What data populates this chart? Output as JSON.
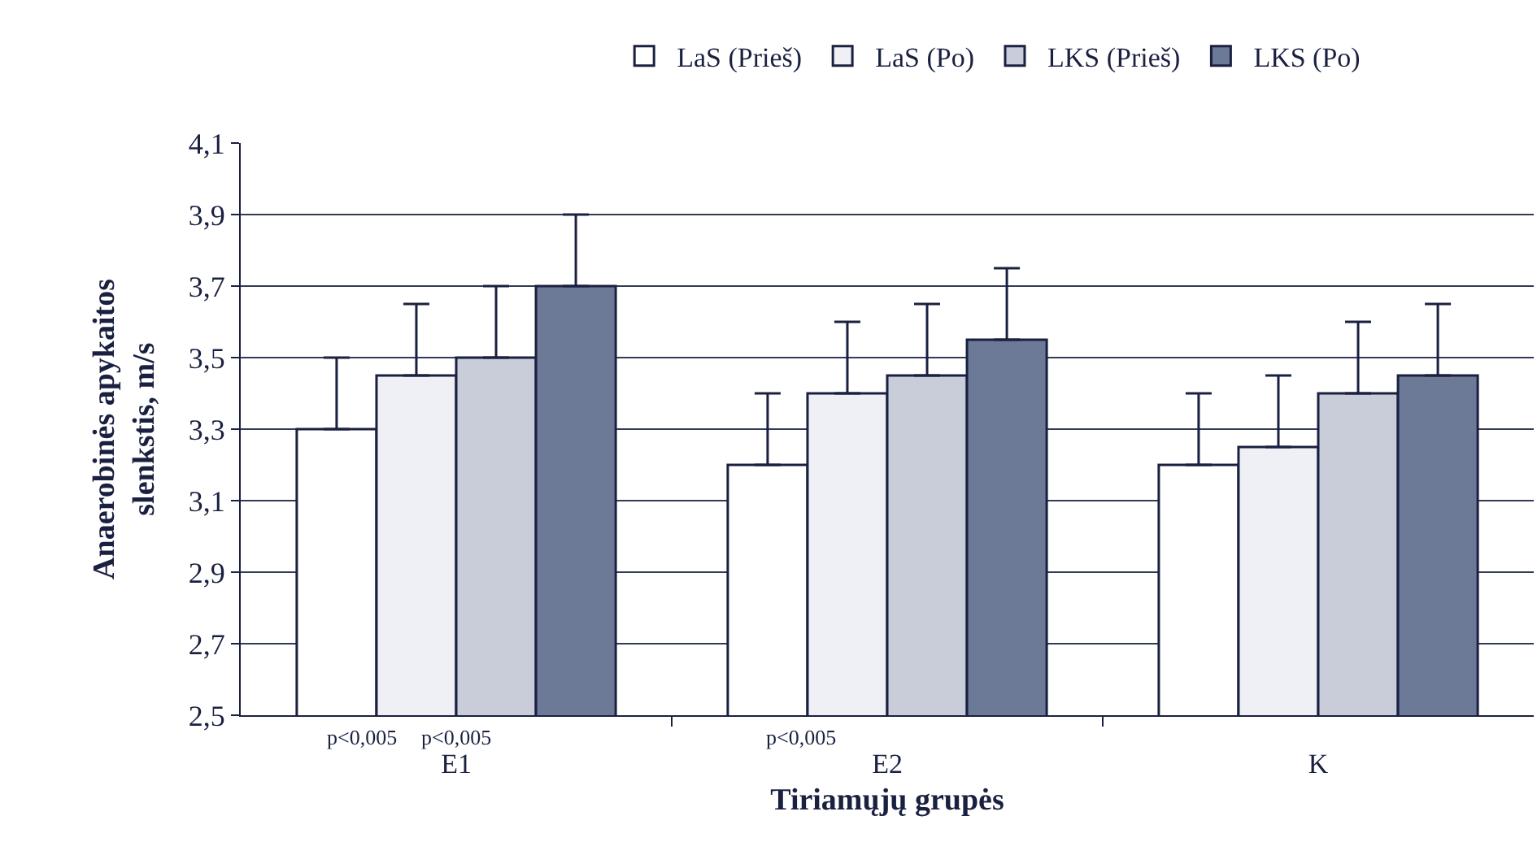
{
  "chart_data": {
    "type": "bar",
    "xlabel": "Tiriamųjų grupės",
    "ylabel": "Anaerobinės apykaitos\nslenkstis, m/s",
    "categories": [
      "E1",
      "E2",
      "K"
    ],
    "series": [
      {
        "name": "LaS (Prieš)",
        "color": "#ffffff",
        "values": [
          3.3,
          3.2,
          3.2
        ],
        "errors": [
          [
            3.3,
            3.5
          ],
          [
            3.2,
            3.4
          ],
          [
            3.2,
            3.4
          ]
        ]
      },
      {
        "name": "LaS (Po)",
        "color": "#eef0f6",
        "values": [
          3.45,
          3.4,
          3.25
        ],
        "errors": [
          [
            3.45,
            3.65
          ],
          [
            3.4,
            3.6
          ],
          [
            3.25,
            3.45
          ]
        ]
      },
      {
        "name": "LKS (Prieš)",
        "color": "#c9cdd9",
        "values": [
          3.5,
          3.45,
          3.4
        ],
        "errors": [
          [
            3.5,
            3.7
          ],
          [
            3.45,
            3.65
          ],
          [
            3.4,
            3.6
          ]
        ]
      },
      {
        "name": "LKS (Po)",
        "color": "#6c7a98",
        "values": [
          3.7,
          3.55,
          3.45
        ],
        "errors": [
          [
            3.7,
            3.9
          ],
          [
            3.55,
            3.75
          ],
          [
            3.45,
            3.65
          ]
        ]
      }
    ],
    "annotations": [
      "p<0,005",
      "p<0,005",
      "p<0,005"
    ],
    "ylim": [
      2.5,
      4.1
    ],
    "yticks": [
      {
        "value": 2.5,
        "label": "2,5"
      },
      {
        "value": 2.7,
        "label": "2,7"
      },
      {
        "value": 2.9,
        "label": "2,9"
      },
      {
        "value": 3.1,
        "label": "3,1"
      },
      {
        "value": 3.3,
        "label": "3,3"
      },
      {
        "value": 3.5,
        "label": "3,5"
      },
      {
        "value": 3.7,
        "label": "3,7"
      },
      {
        "value": 3.9,
        "label": "3,9"
      },
      {
        "value": 4.1,
        "label": "4,1"
      }
    ],
    "grid": "y",
    "legend": "top"
  }
}
